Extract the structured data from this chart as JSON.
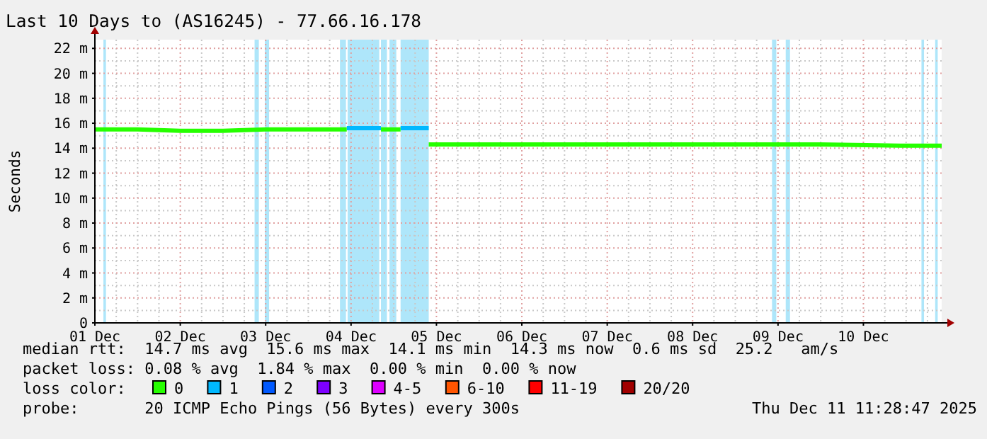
{
  "chart_data": {
    "type": "line",
    "title": "Last 10 Days to (AS16245) - 77.66.16.178",
    "ylabel": "Seconds",
    "xlim": [
      "2025-12-01T00:00",
      "2025-12-10T22:00"
    ],
    "xticks": [
      {
        "value": "2025-12-01",
        "label": "01 Dec"
      },
      {
        "value": "2025-12-02",
        "label": "02 Dec"
      },
      {
        "value": "2025-12-03",
        "label": "03 Dec"
      },
      {
        "value": "2025-12-04",
        "label": "04 Dec"
      },
      {
        "value": "2025-12-05",
        "label": "05 Dec"
      },
      {
        "value": "2025-12-06",
        "label": "06 Dec"
      },
      {
        "value": "2025-12-07",
        "label": "07 Dec"
      },
      {
        "value": "2025-12-08",
        "label": "08 Dec"
      },
      {
        "value": "2025-12-09",
        "label": "09 Dec"
      },
      {
        "value": "2025-12-10",
        "label": "10 Dec"
      }
    ],
    "ylim": [
      0,
      22.7
    ],
    "yticks": [
      0,
      {
        "value": 2,
        "label": "2 m"
      },
      {
        "value": 4,
        "label": "4 m"
      },
      {
        "value": 6,
        "label": "6 m"
      },
      {
        "value": 8,
        "label": "8 m"
      },
      {
        "value": 10,
        "label": "10 m"
      },
      {
        "value": 12,
        "label": "12 m"
      },
      {
        "value": 14,
        "label": "14 m"
      },
      {
        "value": 16,
        "label": "16 m"
      },
      {
        "value": 18,
        "label": "18 m"
      },
      {
        "value": 20,
        "label": "20 m"
      },
      {
        "value": 22,
        "label": "22 m"
      }
    ],
    "grid": true,
    "legend": "bottom",
    "legend_title": "loss color:",
    "series": [
      {
        "name": "0",
        "color": "#26ff00",
        "x": [
          "2025-12-01T00:00",
          "2025-12-01T12:00",
          "2025-12-02T00:00",
          "2025-12-02T12:00",
          "2025-12-03T00:00",
          "2025-12-03T12:00",
          "2025-12-03T22:48",
          "2025-12-04T00:00",
          "2025-12-04T08:24",
          "2025-12-04T13:55",
          "2025-12-04T16:00",
          "2025-12-04T21:50",
          "2025-12-05T12:00",
          "2025-12-06T12:00",
          "2025-12-07T12:00",
          "2025-12-08T12:00",
          "2025-12-09T12:00",
          "2025-12-10T12:00",
          "2025-12-10T22:00"
        ],
        "values": [
          15.5,
          15.5,
          15.4,
          15.4,
          15.5,
          15.5,
          15.5,
          null,
          15.5,
          15.5,
          null,
          14.3,
          14.3,
          14.3,
          14.3,
          14.3,
          14.3,
          14.2,
          14.2
        ]
      },
      {
        "name": "1",
        "color": "#00b8ff",
        "x": [
          "2025-12-03T22:48",
          "2025-12-04T08:24",
          "2025-12-04T10:00",
          "2025-12-04T13:55",
          "2025-12-04T21:50"
        ],
        "values": [
          15.6,
          15.6,
          null,
          15.6,
          15.6
        ]
      },
      {
        "name": "2",
        "color": "#0059ff"
      },
      {
        "name": "3",
        "color": "#7e00ff"
      },
      {
        "name": "4-5",
        "color": "#dd00ff"
      },
      {
        "name": "6-10",
        "color": "#ff5500"
      },
      {
        "name": "11-19",
        "color": "#ff0000"
      },
      {
        "name": "20/20",
        "color": "#a10000"
      }
    ],
    "bands": [
      {
        "axis": "x",
        "from": "2025-12-01T02:24",
        "to": "2025-12-01T03:07",
        "color": "#aee6fa"
      },
      {
        "axis": "x",
        "from": "2025-12-02T20:53",
        "to": "2025-12-02T22:05",
        "color": "#aee6fa"
      },
      {
        "axis": "x",
        "from": "2025-12-02T23:46",
        "to": "2025-12-03T00:58",
        "color": "#aee6fa"
      },
      {
        "axis": "x",
        "from": "2025-12-03T20:53",
        "to": "2025-12-03T22:34",
        "color": "#aee6fa"
      },
      {
        "axis": "x",
        "from": "2025-12-03T23:02",
        "to": "2025-12-04T07:55",
        "color": "#aee6fa"
      },
      {
        "axis": "x",
        "from": "2025-12-04T08:24",
        "to": "2025-12-04T10:05",
        "color": "#aee6fa"
      },
      {
        "axis": "x",
        "from": "2025-12-04T10:48",
        "to": "2025-12-04T12:43",
        "color": "#aee6fa"
      },
      {
        "axis": "x",
        "from": "2025-12-04T13:55",
        "to": "2025-12-04T21:50",
        "color": "#aee6fa"
      },
      {
        "axis": "x",
        "from": "2025-12-08T22:19",
        "to": "2025-12-08T23:31",
        "color": "#aee6fa"
      },
      {
        "axis": "x",
        "from": "2025-12-09T02:10",
        "to": "2025-12-09T03:22",
        "color": "#aee6fa"
      },
      {
        "axis": "x",
        "from": "2025-12-10T16:19",
        "to": "2025-12-10T17:02",
        "color": "#aee6fa"
      },
      {
        "axis": "x",
        "from": "2025-12-10T20:10",
        "to": "2025-12-10T20:53",
        "color": "#aee6fa"
      }
    ],
    "annotations": [
      "median rtt:  14.7 ms avg  15.6 ms max  14.1 ms min  14.3 ms now  0.6 ms sd  25.2   am/s",
      "packet loss: 0.08 % avg  1.84 % max  0.00 % min  0.00 % now",
      "probe:       20 ICMP Echo Pings (56 Bytes) every 300s",
      "Thu Dec 11 11:28:47 2025"
    ]
  }
}
